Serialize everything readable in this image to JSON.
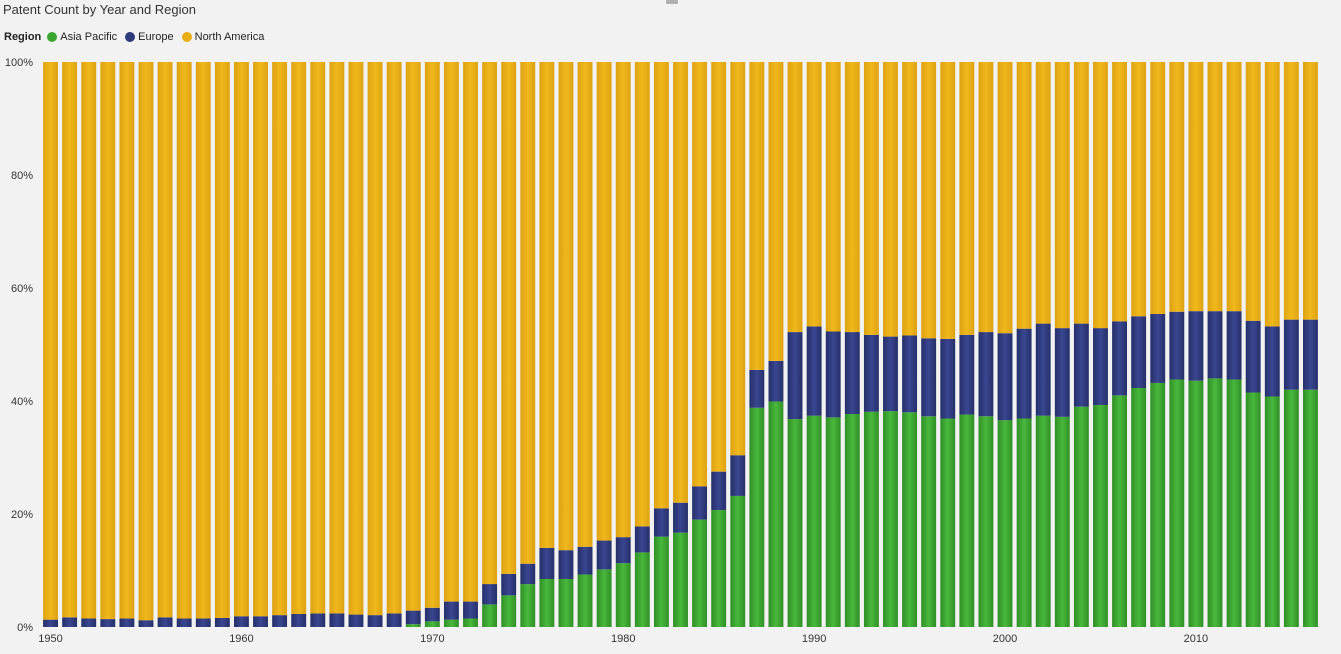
{
  "chart_title": "Patent Count by Year and Region",
  "legend": {
    "title": "Region",
    "items": [
      {
        "label": "Asia Pacific",
        "color": "#3aa52f"
      },
      {
        "label": "Europe",
        "color": "#2e3a7c"
      },
      {
        "label": "North America",
        "color": "#e8ae13"
      }
    ]
  },
  "chart_data": {
    "type": "bar",
    "stacked": "percent",
    "title": "Patent Count by Year and Region",
    "xlabel": "",
    "ylabel": "",
    "ylim": [
      0,
      100
    ],
    "y_ticks": [
      "0%",
      "20%",
      "40%",
      "60%",
      "80%",
      "100%"
    ],
    "x_ticks": [
      "1950",
      "1960",
      "1970",
      "1980",
      "1990",
      "2000",
      "2010"
    ],
    "grid": false,
    "legend_position": "top-left",
    "categories": [
      1950,
      1951,
      1952,
      1953,
      1954,
      1955,
      1956,
      1957,
      1958,
      1959,
      1960,
      1961,
      1962,
      1963,
      1964,
      1965,
      1966,
      1967,
      1968,
      1969,
      1970,
      1971,
      1972,
      1973,
      1974,
      1975,
      1976,
      1977,
      1978,
      1979,
      1980,
      1981,
      1982,
      1983,
      1984,
      1985,
      1986,
      1987,
      1988,
      1989,
      1990,
      1991,
      1992,
      1993,
      1994,
      1995,
      1996,
      1997,
      1998,
      1999,
      2000,
      2001,
      2002,
      2003,
      2004,
      2005,
      2006,
      2007,
      2008,
      2009,
      2010,
      2011,
      2012,
      2013,
      2014,
      2015,
      2016
    ],
    "series": [
      {
        "name": "Asia Pacific",
        "color": "#3aa52f",
        "values": [
          0,
          0,
          0,
          0,
          0,
          0,
          0,
          0,
          0,
          0,
          0,
          0,
          0,
          0,
          0,
          0,
          0,
          0,
          0,
          0.5,
          1,
          1.3,
          1.5,
          4,
          5.6,
          7.6,
          8.5,
          8.5,
          9.3,
          10.2,
          11.3,
          13.2,
          16,
          16.7,
          19,
          20.7,
          23.2,
          38.8,
          39.9,
          36.8,
          37.4,
          37.1,
          37.7,
          38.1,
          38.2,
          38,
          37.3,
          36.9,
          37.6,
          37.3,
          36.6,
          36.9,
          37.4,
          37.2,
          39,
          39.3,
          41,
          42.3,
          43.2,
          43.8,
          43.6,
          44,
          43.8,
          41.5,
          40.8,
          42,
          42
        ]
      },
      {
        "name": "Europe",
        "color": "#2e3a7c",
        "values": [
          1.3,
          1.7,
          1.5,
          1.4,
          1.5,
          1.2,
          1.7,
          1.5,
          1.5,
          1.6,
          1.9,
          1.9,
          2.1,
          2.3,
          2.4,
          2.4,
          2.2,
          2.1,
          2.4,
          2.4,
          2.4,
          3.2,
          3.0,
          3.6,
          3.8,
          3.6,
          5.5,
          5.1,
          4.9,
          5.1,
          4.6,
          4.6,
          5.0,
          5.3,
          5.9,
          6.8,
          7.2,
          6.7,
          7.2,
          15.4,
          15.8,
          15.2,
          14.5,
          13.6,
          13.2,
          13.6,
          13.8,
          14.1,
          14.1,
          14.9,
          15.4,
          15.9,
          16.3,
          15.7,
          14.7,
          13.6,
          13.1,
          12.7,
          12.2,
          12.0,
          12.3,
          11.9,
          12.1,
          12.7,
          12.4,
          12.4,
          12.4
        ]
      },
      {
        "name": "North America",
        "color": "#e8ae13",
        "values": [
          98.7,
          98.3,
          98.5,
          98.6,
          98.5,
          98.8,
          98.3,
          98.5,
          98.5,
          98.4,
          98.1,
          98.1,
          97.9,
          97.7,
          97.6,
          97.6,
          97.8,
          97.9,
          97.6,
          97.1,
          96.6,
          95.5,
          95.5,
          92.4,
          90.6,
          88.8,
          86,
          86.4,
          85.8,
          84.7,
          84.1,
          82.2,
          79,
          78,
          75.1,
          72.5,
          69.6,
          54.5,
          52.9,
          47.8,
          46.8,
          47.7,
          47.8,
          48.3,
          48.6,
          48.4,
          48.9,
          49,
          48.3,
          47.8,
          48,
          47.2,
          46.3,
          47.1,
          46.3,
          47.1,
          45.9,
          45,
          44.6,
          44.2,
          44.1,
          44.1,
          44.1,
          45.8,
          46.8,
          45.6,
          45.6
        ]
      }
    ]
  }
}
